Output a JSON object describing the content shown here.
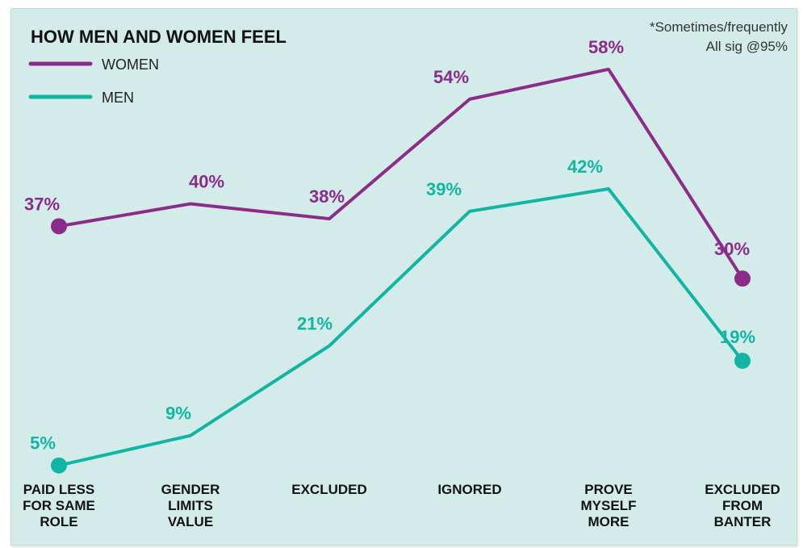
{
  "chart_data": {
    "type": "line",
    "title": "HOW MEN AND WOMEN FEEL",
    "notes": [
      "*Sometimes/frequently",
      "All sig @95%"
    ],
    "categories": [
      [
        "PAID LESS",
        "FOR SAME",
        "ROLE"
      ],
      [
        "GENDER",
        "LIMITS",
        "VALUE"
      ],
      [
        "EXCLUDED"
      ],
      [
        "IGNORED"
      ],
      [
        "PROVE",
        "MYSELF",
        "MORE"
      ],
      [
        "EXCLUDED",
        "FROM",
        "BANTER"
      ]
    ],
    "series": [
      {
        "name": "WOMEN",
        "color": "#8b2b8a",
        "values": [
          37,
          40,
          38,
          54,
          58,
          30
        ],
        "labels": [
          "37%",
          "40%",
          "38%",
          "54%",
          "58%",
          "30%"
        ]
      },
      {
        "name": "MEN",
        "color": "#12b5a4",
        "values": [
          5,
          9,
          21,
          39,
          42,
          19
        ],
        "labels": [
          "5%",
          "9%",
          "21%",
          "39%",
          "42%",
          "19%"
        ]
      }
    ],
    "ylim": [
      0,
      65
    ],
    "grid": false,
    "legend_position": "top-left"
  }
}
